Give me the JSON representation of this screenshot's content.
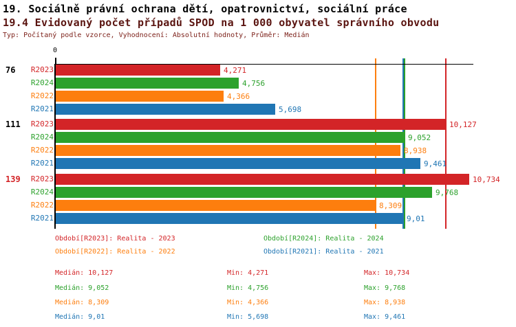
{
  "header": {
    "title1": "19. Sociálně právní ochrana dětí, opatrovnictví, sociální práce",
    "title2": "19.4 Evidovaný počet případů SPOD na 1 000 obyvatel správního obvodu",
    "subtitle": "Typ: Počítaný podle vzorce, Vyhodnocení: Absolutní hodnoty, Průměr: Medián"
  },
  "colors": {
    "R2023": "#d32427",
    "R2024": "#2ca12c",
    "R2022": "#fd7e0e",
    "R2021": "#2076b4",
    "axis": "#000000",
    "title1": "#000000",
    "title2": "#5a1410",
    "subtitle": "#7d221b",
    "group_label_normal": "#000000",
    "group_label_highlight": "#d32427"
  },
  "chart_data": {
    "type": "bar",
    "orientation": "horizontal",
    "axis_origin_label": "0",
    "xlim": [
      0,
      10.84
    ],
    "grid": false,
    "series_order": [
      "R2023",
      "R2024",
      "R2022",
      "R2021"
    ],
    "groups": [
      {
        "label": "76",
        "highlight": false,
        "bars": [
          {
            "series": "R2023",
            "value": 4.271,
            "display": "4,271"
          },
          {
            "series": "R2024",
            "value": 4.756,
            "display": "4,756"
          },
          {
            "series": "R2022",
            "value": 4.366,
            "display": "4,366"
          },
          {
            "series": "R2021",
            "value": 5.698,
            "display": "5,698"
          }
        ]
      },
      {
        "label": "111",
        "highlight": false,
        "bars": [
          {
            "series": "R2023",
            "value": 10.127,
            "display": "10,127"
          },
          {
            "series": "R2024",
            "value": 9.052,
            "display": "9,052"
          },
          {
            "series": "R2022",
            "value": 8.938,
            "display": "8,938"
          },
          {
            "series": "R2021",
            "value": 9.461,
            "display": "9,461"
          }
        ]
      },
      {
        "label": "139",
        "highlight": true,
        "bars": [
          {
            "series": "R2023",
            "value": 10.734,
            "display": "10,734"
          },
          {
            "series": "R2024",
            "value": 9.768,
            "display": "9,768"
          },
          {
            "series": "R2022",
            "value": 8.309,
            "display": "8,309"
          },
          {
            "series": "R2021",
            "value": 9.01,
            "display": "9,01"
          }
        ]
      }
    ],
    "median_lines": [
      {
        "series": "R2023",
        "value": 10.127
      },
      {
        "series": "R2024",
        "value": 9.052
      },
      {
        "series": "R2022",
        "value": 8.309
      },
      {
        "series": "R2021",
        "value": 9.01
      }
    ]
  },
  "legend": {
    "items": [
      {
        "series": "R2023",
        "text": "Období[R2023]: Realita - 2023"
      },
      {
        "series": "R2024",
        "text": "Období[R2024]: Realita - 2024"
      },
      {
        "series": "R2022",
        "text": "Období[R2022]: Realita - 2022"
      },
      {
        "series": "R2021",
        "text": "Období[R2021]: Realita - 2021"
      }
    ]
  },
  "stats": {
    "rows": [
      {
        "series": "R2023",
        "median": "Medián: 10,127",
        "min": "Min: 4,271",
        "max": "Max: 10,734"
      },
      {
        "series": "R2024",
        "median": "Medián: 9,052",
        "min": "Min: 4,756",
        "max": "Max: 9,768"
      },
      {
        "series": "R2022",
        "median": "Medián: 8,309",
        "min": "Min: 4,366",
        "max": "Max: 8,938"
      },
      {
        "series": "R2021",
        "median": "Medián: 9,01",
        "min": "Min: 5,698",
        "max": "Max: 9,461"
      }
    ]
  }
}
